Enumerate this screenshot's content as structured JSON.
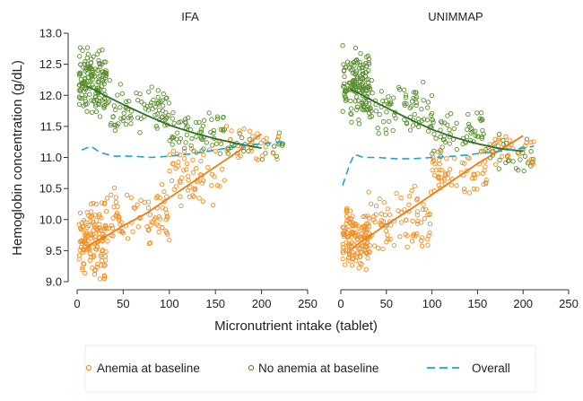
{
  "chart_data": {
    "type": "scatter",
    "ylabel": "Hemoglobin concentration (g/dL)",
    "xlabel": "Micronutrient intake (tablet)",
    "xlim": [
      0,
      250
    ],
    "ylim": [
      9.0,
      13.0
    ],
    "x_ticks": [
      "0",
      "50",
      "100",
      "150",
      "200",
      "250"
    ],
    "y_ticks": [
      "9.0",
      "9.5",
      "10.0",
      "10.5",
      "11.0",
      "11.5",
      "12.0",
      "12.5",
      "13.0"
    ],
    "grid": false,
    "legend_position": "bottom",
    "legend": [
      {
        "label": "Anemia at baseline",
        "marker": "circle",
        "color": "#f28c1e"
      },
      {
        "label": "No anemia at baseline",
        "marker": "circle",
        "color": "#5a8f2e"
      },
      {
        "label": "Overall",
        "marker": "dashed-line",
        "color": "#1fa2d6"
      }
    ],
    "colors": {
      "anemia_points": "#f28c1e",
      "anemia_fit": "#ee7d14",
      "no_anemia_points": "#5a8f2e",
      "no_anemia_fit": "#2f6e24",
      "overall": "#1fa2d6"
    },
    "panels": [
      {
        "title": "IFA",
        "scatter_clusters": {
          "anemia": [
            {
              "x": [
                2,
                32
              ],
              "y": [
                9.0,
                10.4
              ],
              "n": 130
            },
            {
              "x": [
                30,
                100
              ],
              "y": [
                9.5,
                10.6
              ],
              "n": 80
            },
            {
              "x": [
                100,
                160
              ],
              "y": [
                10.2,
                11.3
              ],
              "n": 60
            },
            {
              "x": [
                160,
                225
              ],
              "y": [
                10.8,
                11.65
              ],
              "n": 30
            }
          ],
          "no_anemia": [
            {
              "x": [
                2,
                32
              ],
              "y": [
                11.6,
                12.85
              ],
              "n": 150
            },
            {
              "x": [
                30,
                100
              ],
              "y": [
                11.3,
                12.3
              ],
              "n": 80
            },
            {
              "x": [
                100,
                160
              ],
              "y": [
                11.0,
                11.8
              ],
              "n": 60
            },
            {
              "x": [
                160,
                225
              ],
              "y": [
                10.9,
                11.45
              ],
              "n": 30
            }
          ]
        },
        "series": [
          {
            "name": "Anemia at baseline",
            "x": [
              10,
              20,
              30,
              50,
              75,
              100,
              125,
              150,
              175,
              200
            ],
            "y": [
              9.55,
              9.65,
              9.72,
              9.9,
              10.1,
              10.35,
              10.6,
              10.85,
              11.1,
              11.38
            ]
          },
          {
            "name": "No anemia at baseline",
            "x": [
              10,
              20,
              30,
              50,
              75,
              100,
              125,
              150,
              175,
              200
            ],
            "y": [
              12.15,
              12.08,
              12.0,
              11.85,
              11.68,
              11.52,
              11.4,
              11.3,
              11.22,
              11.15
            ]
          },
          {
            "name": "Overall",
            "x": [
              5,
              15,
              25,
              40,
              60,
              80,
              100,
              125,
              150,
              175,
              200,
              225
            ],
            "y": [
              11.12,
              11.18,
              11.08,
              11.02,
              11.02,
              11.0,
              11.02,
              11.06,
              11.12,
              11.18,
              11.22,
              11.25
            ]
          }
        ]
      },
      {
        "title": "UNIMMAP",
        "scatter_clusters": {
          "anemia": [
            {
              "x": [
                2,
                32
              ],
              "y": [
                9.1,
                10.3
              ],
              "n": 130
            },
            {
              "x": [
                30,
                100
              ],
              "y": [
                9.4,
                10.6
              ],
              "n": 80
            },
            {
              "x": [
                100,
                160
              ],
              "y": [
                10.2,
                11.2
              ],
              "n": 60
            },
            {
              "x": [
                160,
                212
              ],
              "y": [
                10.8,
                11.55
              ],
              "n": 30
            }
          ],
          "no_anemia": [
            {
              "x": [
                2,
                32
              ],
              "y": [
                11.5,
                12.85
              ],
              "n": 150
            },
            {
              "x": [
                30,
                100
              ],
              "y": [
                11.3,
                12.3
              ],
              "n": 80
            },
            {
              "x": [
                100,
                160
              ],
              "y": [
                11.0,
                11.8
              ],
              "n": 60
            },
            {
              "x": [
                160,
                212
              ],
              "y": [
                10.6,
                11.45
              ],
              "n": 30
            }
          ]
        },
        "series": [
          {
            "name": "Anemia at baseline",
            "x": [
              10,
              20,
              30,
              50,
              75,
              100,
              125,
              150,
              175,
              200
            ],
            "y": [
              9.5,
              9.62,
              9.72,
              9.92,
              10.15,
              10.4,
              10.65,
              10.9,
              11.12,
              11.35
            ]
          },
          {
            "name": "No anemia at baseline",
            "x": [
              10,
              20,
              30,
              50,
              75,
              100,
              125,
              150,
              175,
              200
            ],
            "y": [
              12.1,
              12.03,
              11.95,
              11.8,
              11.62,
              11.45,
              11.32,
              11.22,
              11.14,
              11.1
            ]
          },
          {
            "name": "Overall",
            "x": [
              2,
              10,
              15,
              25,
              40,
              60,
              80,
              100,
              125,
              150,
              175,
              200,
              212
            ],
            "y": [
              10.55,
              10.9,
              11.05,
              11.0,
              11.0,
              10.98,
              10.98,
              11.0,
              11.02,
              11.06,
              11.1,
              11.15,
              11.18
            ]
          }
        ]
      }
    ]
  }
}
